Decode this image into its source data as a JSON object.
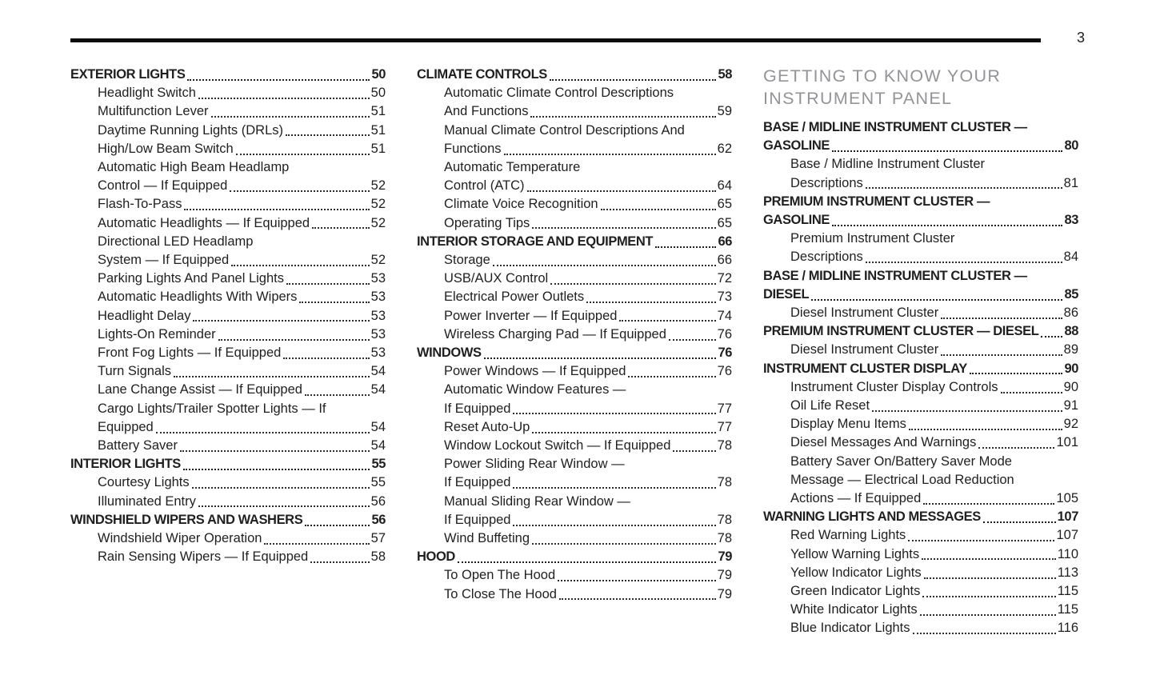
{
  "page_number": "3",
  "chapter_heading": {
    "lines": [
      "GETTING TO KNOW YOUR",
      "INSTRUMENT PANEL"
    ]
  },
  "toc_columns": [
    {
      "sections": [
        {
          "heading": {
            "lines": [
              "EXTERIOR LIGHTS"
            ],
            "page": "50"
          },
          "items": [
            {
              "lines": [
                "Headlight Switch"
              ],
              "page": "50"
            },
            {
              "lines": [
                "Multifunction Lever"
              ],
              "page": "51"
            },
            {
              "lines": [
                "Daytime Running Lights (DRLs)"
              ],
              "page": "51"
            },
            {
              "lines": [
                "High/Low Beam Switch"
              ],
              "page": "51"
            },
            {
              "lines": [
                "Automatic High Beam Headlamp",
                "Control — If Equipped"
              ],
              "page": "52"
            },
            {
              "lines": [
                "Flash-To-Pass"
              ],
              "page": "52"
            },
            {
              "lines": [
                "Automatic Headlights — If Equipped"
              ],
              "page": "52"
            },
            {
              "lines": [
                "Directional LED Headlamp",
                "System — If Equipped"
              ],
              "page": "52"
            },
            {
              "lines": [
                "Parking Lights And Panel Lights"
              ],
              "page": "53"
            },
            {
              "lines": [
                "Automatic Headlights With Wipers"
              ],
              "page": "53"
            },
            {
              "lines": [
                "Headlight Delay"
              ],
              "page": "53"
            },
            {
              "lines": [
                "Lights-On Reminder"
              ],
              "page": "53"
            },
            {
              "lines": [
                "Front Fog Lights — If Equipped"
              ],
              "page": "53"
            },
            {
              "lines": [
                "Turn Signals"
              ],
              "page": "54"
            },
            {
              "lines": [
                "Lane Change Assist — If Equipped"
              ],
              "page": "54"
            },
            {
              "lines": [
                "Cargo Lights/Trailer Spotter Lights — If",
                "Equipped"
              ],
              "page": "54"
            },
            {
              "lines": [
                "Battery Saver"
              ],
              "page": "54"
            }
          ]
        },
        {
          "heading": {
            "lines": [
              "INTERIOR LIGHTS"
            ],
            "page": "55"
          },
          "items": [
            {
              "lines": [
                "Courtesy Lights"
              ],
              "page": "55"
            },
            {
              "lines": [
                "Illuminated Entry"
              ],
              "page": "56"
            }
          ]
        },
        {
          "heading": {
            "lines": [
              "WINDSHIELD WIPERS AND WASHERS"
            ],
            "page": "56"
          },
          "items": [
            {
              "lines": [
                "Windshield Wiper Operation"
              ],
              "page": "57"
            },
            {
              "lines": [
                "Rain Sensing Wipers — If Equipped"
              ],
              "page": "58"
            }
          ]
        }
      ]
    },
    {
      "sections": [
        {
          "heading": {
            "lines": [
              "CLIMATE CONTROLS"
            ],
            "page": "58"
          },
          "items": [
            {
              "lines": [
                "Automatic Climate Control Descriptions",
                "And Functions"
              ],
              "page": "59"
            },
            {
              "lines": [
                "Manual Climate Control Descriptions And",
                "Functions"
              ],
              "page": "62"
            },
            {
              "lines": [
                "Automatic Temperature",
                "Control (ATC)"
              ],
              "page": "64"
            },
            {
              "lines": [
                "Climate Voice Recognition"
              ],
              "page": "65"
            },
            {
              "lines": [
                "Operating Tips"
              ],
              "page": "65"
            }
          ]
        },
        {
          "heading": {
            "lines": [
              "INTERIOR STORAGE AND EQUIPMENT"
            ],
            "page": "66"
          },
          "items": [
            {
              "lines": [
                "Storage"
              ],
              "page": "66"
            },
            {
              "lines": [
                "USB/AUX Control"
              ],
              "page": "72"
            },
            {
              "lines": [
                "Electrical Power Outlets"
              ],
              "page": "73"
            },
            {
              "lines": [
                "Power Inverter — If Equipped"
              ],
              "page": "74"
            },
            {
              "lines": [
                "Wireless Charging Pad — If Equipped"
              ],
              "page": "76"
            }
          ]
        },
        {
          "heading": {
            "lines": [
              "WINDOWS"
            ],
            "page": "76"
          },
          "items": [
            {
              "lines": [
                "Power Windows — If Equipped"
              ],
              "page": "76"
            },
            {
              "lines": [
                "Automatic Window Features —",
                "If Equipped"
              ],
              "page": "77"
            },
            {
              "lines": [
                "Reset Auto-Up"
              ],
              "page": "77"
            },
            {
              "lines": [
                "Window Lockout Switch — If Equipped"
              ],
              "page": "78"
            },
            {
              "lines": [
                "Power Sliding Rear Window —",
                "If Equipped"
              ],
              "page": "78"
            },
            {
              "lines": [
                "Manual Sliding Rear Window —",
                "If Equipped"
              ],
              "page": "78"
            },
            {
              "lines": [
                "Wind Buffeting"
              ],
              "page": "78"
            }
          ]
        },
        {
          "heading": {
            "lines": [
              "HOOD"
            ],
            "page": "79"
          },
          "items": [
            {
              "lines": [
                "To Open The Hood"
              ],
              "page": "79"
            },
            {
              "lines": [
                "To Close The Hood"
              ],
              "page": "79"
            }
          ]
        }
      ]
    },
    {
      "sections": [
        {
          "heading": {
            "lines": [
              "BASE / MIDLINE INSTRUMENT CLUSTER —",
              "GASOLINE"
            ],
            "page": "80"
          },
          "items": [
            {
              "lines": [
                "Base / Midline Instrument Cluster",
                "Descriptions"
              ],
              "page": "81"
            }
          ]
        },
        {
          "heading": {
            "lines": [
              "PREMIUM INSTRUMENT CLUSTER —",
              "GASOLINE"
            ],
            "page": "83"
          },
          "items": [
            {
              "lines": [
                "Premium Instrument Cluster",
                "Descriptions"
              ],
              "page": "84"
            }
          ]
        },
        {
          "heading": {
            "lines": [
              "BASE / MIDLINE INSTRUMENT CLUSTER —",
              "DIESEL"
            ],
            "page": "85"
          },
          "items": [
            {
              "lines": [
                "Diesel Instrument Cluster"
              ],
              "page": "86"
            }
          ]
        },
        {
          "heading": {
            "lines": [
              "PREMIUM INSTRUMENT CLUSTER — DIESEL"
            ],
            "page": "88"
          },
          "items": [
            {
              "lines": [
                "Diesel Instrument Cluster"
              ],
              "page": "89"
            }
          ]
        },
        {
          "heading": {
            "lines": [
              "INSTRUMENT CLUSTER DISPLAY"
            ],
            "page": "90"
          },
          "items": [
            {
              "lines": [
                "Instrument Cluster Display Controls"
              ],
              "page": "90"
            },
            {
              "lines": [
                "Oil Life Reset"
              ],
              "page": "91"
            },
            {
              "lines": [
                "Display Menu Items"
              ],
              "page": "92"
            },
            {
              "lines": [
                "Diesel Messages And Warnings"
              ],
              "page": "101"
            },
            {
              "lines": [
                "Battery Saver On/Battery Saver Mode",
                "Message — Electrical Load Reduction",
                "Actions — If Equipped"
              ],
              "page": "105"
            }
          ]
        },
        {
          "heading": {
            "lines": [
              "WARNING LIGHTS AND MESSAGES"
            ],
            "page": "107"
          },
          "items": [
            {
              "lines": [
                "Red Warning Lights"
              ],
              "page": "107"
            },
            {
              "lines": [
                "Yellow Warning Lights"
              ],
              "page": "110"
            },
            {
              "lines": [
                "Yellow Indicator Lights"
              ],
              "page": "113"
            },
            {
              "lines": [
                "Green Indicator Lights"
              ],
              "page": "115"
            },
            {
              "lines": [
                "White Indicator Lights"
              ],
              "page": "115"
            },
            {
              "lines": [
                "Blue Indicator Lights"
              ],
              "page": "116"
            }
          ]
        }
      ]
    }
  ]
}
